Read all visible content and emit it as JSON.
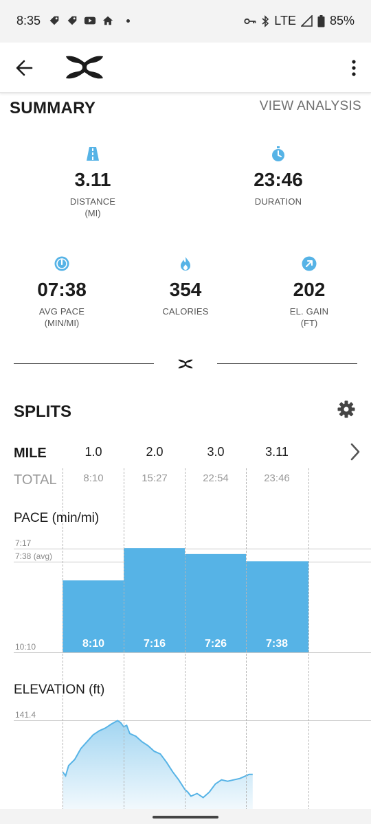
{
  "status_bar": {
    "time": "8:35",
    "network": "LTE",
    "battery": "85%",
    "left_icons": [
      "tag-icon",
      "tag-icon",
      "youtube-icon",
      "home-icon"
    ],
    "right_icons": [
      "vpn-key-icon",
      "bluetooth-icon",
      "signal-icon",
      "battery-icon"
    ]
  },
  "app_bar": {
    "brand_icon": "under-armour-logo"
  },
  "summary": {
    "title": "SUMMARY",
    "view_analysis": "VIEW ANALYSIS",
    "accent_color": "#56b3e6",
    "stats": [
      {
        "icon": "road-icon",
        "value": "3.11",
        "label": "DISTANCE",
        "unit": "(MI)"
      },
      {
        "icon": "stopwatch-icon",
        "value": "23:46",
        "label": "DURATION",
        "unit": ""
      },
      {
        "icon": "speedometer-icon",
        "value": "07:38",
        "label": "AVG PACE",
        "unit": "(MIN/MI)"
      },
      {
        "icon": "flame-icon",
        "value": "354",
        "label": "CALORIES",
        "unit": ""
      },
      {
        "icon": "arrow-up-right-icon",
        "value": "202",
        "label": "EL. GAIN",
        "unit": "(FT)"
      }
    ]
  },
  "splits": {
    "title": "SPLITS",
    "mile_label": "MILE",
    "total_label": "TOTAL",
    "miles": [
      "1.0",
      "2.0",
      "3.0",
      "3.11"
    ],
    "totals": [
      "8:10",
      "15:27",
      "22:54",
      "23:46"
    ]
  },
  "pace_chart": {
    "title": "PACE (min/mi)",
    "top_label": "7:17",
    "avg_label": "7:38 (avg)",
    "bottom_label": "10:10"
  },
  "elevation_chart": {
    "title": "ELEVATION (ft)",
    "top_label": "141.4"
  },
  "chart_data": [
    {
      "type": "bar",
      "title": "PACE (min/mi)",
      "categories": [
        "1.0",
        "2.0",
        "3.0",
        "3.11"
      ],
      "labels": [
        "8:10",
        "7:16",
        "7:26",
        "7:38"
      ],
      "values_seconds": [
        490,
        436,
        446,
        458
      ],
      "y_axis_top_seconds": 437,
      "y_axis_bottom_seconds": 610,
      "avg_seconds": 458,
      "color": "#56b3e6"
    },
    {
      "type": "area",
      "title": "ELEVATION (ft)",
      "y_max": 141.4,
      "x_miles": [
        0.0,
        0.05,
        0.1,
        0.2,
        0.3,
        0.4,
        0.5,
        0.6,
        0.7,
        0.8,
        0.9,
        0.95,
        1.0,
        1.05,
        1.1,
        1.2,
        1.3,
        1.4,
        1.5,
        1.6,
        1.7,
        1.8,
        1.9,
        2.0,
        2.05,
        2.1,
        2.2,
        2.3,
        2.4,
        2.5,
        2.6,
        2.7,
        2.8,
        2.9,
        3.0,
        3.05,
        3.11
      ],
      "y_ft": [
        66,
        60,
        75,
        84,
        100,
        110,
        120,
        126,
        130,
        136,
        141,
        138,
        132,
        134,
        122,
        118,
        110,
        104,
        96,
        92,
        80,
        66,
        54,
        40,
        36,
        30,
        34,
        28,
        36,
        48,
        54,
        52,
        54,
        56,
        60,
        62,
        62
      ],
      "color": "#56b3e6"
    }
  ]
}
